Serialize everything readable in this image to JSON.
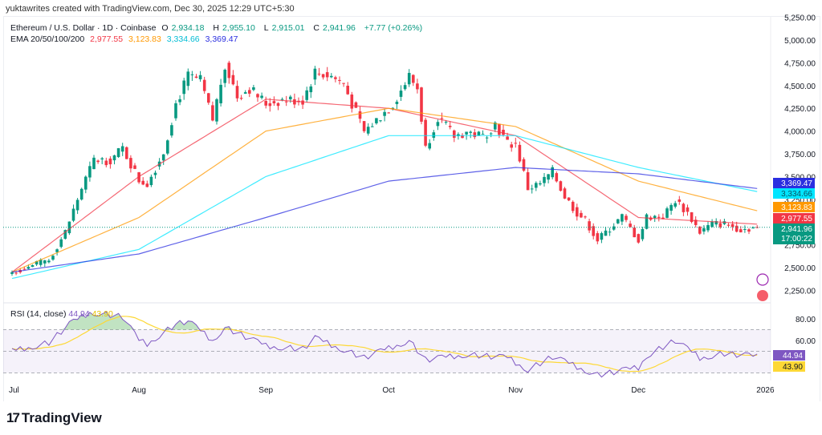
{
  "credit": "yuktawrites created with TradingView.com, Dec 30, 2025 12:29 UTC+5:30",
  "legend": {
    "symbol": "Ethereum / U.S. Dollar · 1D · Coinbase",
    "open_label": "O",
    "open": "2,934.18",
    "high_label": "H",
    "high": "2,955.10",
    "low_label": "L",
    "low": "2,915.01",
    "close_label": "C",
    "close": "2,941.96",
    "change": "+7.77 (+0.26%)",
    "ema_label": "EMA 20/50/100/200",
    "ema20": "2,977.55",
    "ema50": "3,123.83",
    "ema100": "3,334.66",
    "ema200": "3,369.47"
  },
  "rsi_legend": {
    "label": "RSI (14, close)",
    "value": "44.94",
    "ma_value": "43.90"
  },
  "countdown": "17:00:22",
  "brand": "TradingView",
  "colors": {
    "up": "#089981",
    "down": "#f23645",
    "ema20": "#f23645",
    "ema50": "#ff9800",
    "ema100": "#00e5ff",
    "ema200": "#2a2ee0",
    "rsi": "#7e57c2",
    "rsi_ma": "#fdd835"
  },
  "chart_data": [
    {
      "type": "candlestick",
      "title": "Ethereum / U.S. Dollar · 1D · Coinbase",
      "x_ticks": [
        "Jul",
        "Aug",
        "Sep",
        "Oct",
        "Nov",
        "Dec",
        "2026"
      ],
      "y_ticks": [
        "5,250.00",
        "5,000.00",
        "4,750.00",
        "4,500.00",
        "4,250.00",
        "4,000.00",
        "3,750.00",
        "3,500.00",
        "3,250.00",
        "2,750.00",
        "2,500.00",
        "2,250.00"
      ],
      "ylim": [
        2250,
        5250
      ],
      "close_waypoints": [
        [
          "2025-07-01",
          2450
        ],
        [
          "2025-07-10",
          2580
        ],
        [
          "2025-07-14",
          2890
        ],
        [
          "2025-07-18",
          3370
        ],
        [
          "2025-07-21",
          3680
        ],
        [
          "2025-07-25",
          3680
        ],
        [
          "2025-07-28",
          3810
        ],
        [
          "2025-08-01",
          3460
        ],
        [
          "2025-08-03",
          3420
        ],
        [
          "2025-08-07",
          3770
        ],
        [
          "2025-08-10",
          4300
        ],
        [
          "2025-08-13",
          4600
        ],
        [
          "2025-08-16",
          4550
        ],
        [
          "2025-08-19",
          4120
        ],
        [
          "2025-08-22",
          4740
        ],
        [
          "2025-08-25",
          4380
        ],
        [
          "2025-08-28",
          4470
        ],
        [
          "2025-09-01",
          4300
        ],
        [
          "2025-09-05",
          4340
        ],
        [
          "2025-09-10",
          4340
        ],
        [
          "2025-09-13",
          4650
        ],
        [
          "2025-09-17",
          4600
        ],
        [
          "2025-09-20",
          4520
        ],
        [
          "2025-09-22",
          4300
        ],
        [
          "2025-09-25",
          3990
        ],
        [
          "2025-09-28",
          4120
        ],
        [
          "2025-10-02",
          4300
        ],
        [
          "2025-10-06",
          4600
        ],
        [
          "2025-10-08",
          4470
        ],
        [
          "2025-10-10",
          3810
        ],
        [
          "2025-10-13",
          4160
        ],
        [
          "2025-10-17",
          3940
        ],
        [
          "2025-10-20",
          3990
        ],
        [
          "2025-10-24",
          3940
        ],
        [
          "2025-10-27",
          4080
        ],
        [
          "2025-10-30",
          3860
        ],
        [
          "2025-11-01",
          3860
        ],
        [
          "2025-11-04",
          3370
        ],
        [
          "2025-11-07",
          3420
        ],
        [
          "2025-11-10",
          3550
        ],
        [
          "2025-11-13",
          3280
        ],
        [
          "2025-11-16",
          3100
        ],
        [
          "2025-11-18",
          3020
        ],
        [
          "2025-11-21",
          2800
        ],
        [
          "2025-11-24",
          2930
        ],
        [
          "2025-11-27",
          3060
        ],
        [
          "2025-12-01",
          2800
        ],
        [
          "2025-12-03",
          3060
        ],
        [
          "2025-12-07",
          3060
        ],
        [
          "2025-12-10",
          3240
        ],
        [
          "2025-12-13",
          3100
        ],
        [
          "2025-12-16",
          2890
        ],
        [
          "2025-12-19",
          2980
        ],
        [
          "2025-12-22",
          2980
        ],
        [
          "2025-12-26",
          2920
        ],
        [
          "2025-12-30",
          2942
        ]
      ],
      "last_price": "2,941.96",
      "series": [
        {
          "name": "EMA 20",
          "value_label": "2,977.55",
          "points": [
            [
              "2025-07-01",
              2450
            ],
            [
              "2025-08-01",
              3500
            ],
            [
              "2025-09-01",
              4350
            ],
            [
              "2025-10-01",
              4250
            ],
            [
              "2025-11-01",
              3950
            ],
            [
              "2025-12-01",
              3050
            ],
            [
              "2025-12-30",
              2977
            ]
          ]
        },
        {
          "name": "EMA 50",
          "value_label": "3,123.83",
          "points": [
            [
              "2025-07-01",
              2450
            ],
            [
              "2025-08-01",
              3050
            ],
            [
              "2025-09-01",
              4000
            ],
            [
              "2025-10-01",
              4250
            ],
            [
              "2025-11-01",
              4050
            ],
            [
              "2025-12-01",
              3450
            ],
            [
              "2025-12-30",
              3124
            ]
          ]
        },
        {
          "name": "EMA 100",
          "value_label": "3,334.66",
          "points": [
            [
              "2025-07-01",
              2380
            ],
            [
              "2025-08-01",
              2700
            ],
            [
              "2025-09-01",
              3500
            ],
            [
              "2025-10-01",
              3950
            ],
            [
              "2025-11-01",
              3950
            ],
            [
              "2025-12-01",
              3600
            ],
            [
              "2025-12-30",
              3335
            ]
          ]
        },
        {
          "name": "EMA 200",
          "value_label": "3,369.47",
          "points": [
            [
              "2025-07-01",
              2450
            ],
            [
              "2025-08-01",
              2650
            ],
            [
              "2025-09-01",
              3050
            ],
            [
              "2025-10-01",
              3450
            ],
            [
              "2025-11-01",
              3600
            ],
            [
              "2025-12-01",
              3530
            ],
            [
              "2025-12-30",
              3369
            ]
          ]
        }
      ]
    },
    {
      "type": "line",
      "title": "RSI (14, close)",
      "y_ticks": [
        "80.00",
        "60.00"
      ],
      "band": [
        30,
        70
      ],
      "rsi_waypoints": [
        [
          "2025-07-01",
          50
        ],
        [
          "2025-07-10",
          58
        ],
        [
          "2025-07-15",
          75
        ],
        [
          "2025-07-20",
          86
        ],
        [
          "2025-07-28",
          82
        ],
        [
          "2025-08-01",
          60
        ],
        [
          "2025-08-03",
          57
        ],
        [
          "2025-08-10",
          75
        ],
        [
          "2025-08-13",
          78
        ],
        [
          "2025-08-19",
          60
        ],
        [
          "2025-08-22",
          72
        ],
        [
          "2025-09-01",
          55
        ],
        [
          "2025-09-10",
          52
        ],
        [
          "2025-09-13",
          62
        ],
        [
          "2025-09-25",
          44
        ],
        [
          "2025-10-06",
          60
        ],
        [
          "2025-10-10",
          42
        ],
        [
          "2025-10-20",
          47
        ],
        [
          "2025-10-30",
          44
        ],
        [
          "2025-11-04",
          33
        ],
        [
          "2025-11-10",
          45
        ],
        [
          "2025-11-21",
          28
        ],
        [
          "2025-12-01",
          35
        ],
        [
          "2025-12-03",
          46
        ],
        [
          "2025-12-10",
          60
        ],
        [
          "2025-12-16",
          44
        ],
        [
          "2025-12-22",
          48
        ],
        [
          "2025-12-30",
          45
        ]
      ],
      "value_label": "44.94",
      "ma_label": "43.90"
    }
  ]
}
